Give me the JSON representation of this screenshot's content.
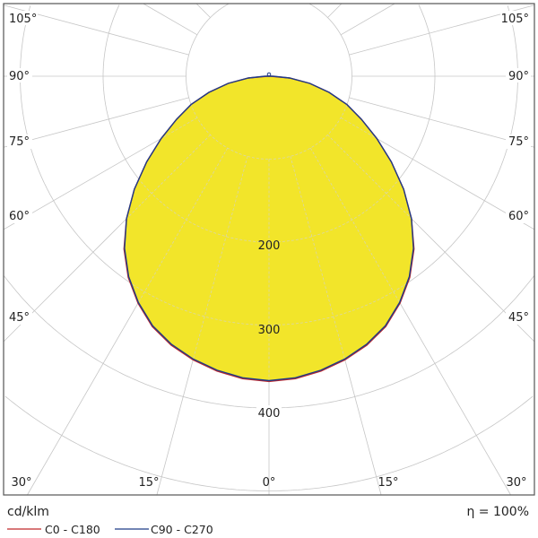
{
  "chart_data": {
    "type": "polar",
    "unit_label": "cd/klm",
    "efficiency_label": "η = 100%",
    "radial_ticks": [
      100,
      200,
      300,
      400,
      500,
      600
    ],
    "radial_tick_labels": [
      "200",
      "300",
      "400"
    ],
    "angle_labels_left": [
      "105°",
      "90°",
      "75°",
      "60°",
      "45°"
    ],
    "angle_labels_right": [
      "105°",
      "90°",
      "75°",
      "60°",
      "45°"
    ],
    "angle_labels_bottom": [
      "30°",
      "15°",
      "0°",
      "15°",
      "30°"
    ],
    "angle_step_deg": 15,
    "grid": true,
    "fill_color": "#F2E52A",
    "angles_deg": [
      0,
      5,
      10,
      15,
      20,
      25,
      30,
      35,
      40,
      45,
      50,
      55,
      60,
      65,
      70,
      75,
      80,
      85,
      90
    ],
    "series": [
      {
        "name": "C0 - C180",
        "color": "#C0282A",
        "values": [
          368,
          366,
          361,
          354,
          345,
          333,
          316,
          296,
          272,
          243,
          212,
          180,
          150,
          123,
          100,
          75,
          50,
          25,
          2
        ]
      },
      {
        "name": "C90 - C270",
        "color": "#1F3C88",
        "values": [
          367,
          365,
          360,
          353,
          344,
          332,
          315,
          295,
          271,
          243,
          212,
          180,
          150,
          123,
          100,
          75,
          50,
          25,
          5
        ]
      }
    ]
  }
}
